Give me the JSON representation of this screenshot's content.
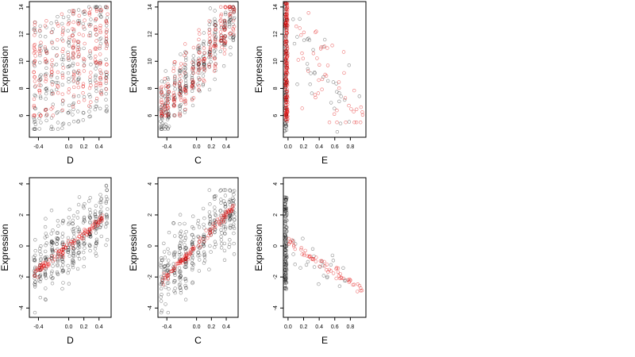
{
  "colors": {
    "black_points": "#000000",
    "red_points": "#e00000",
    "axis": "#000000"
  },
  "chart_data": [
    {
      "type": "scatter",
      "xlabel": "D",
      "ylabel": "Expression",
      "xlim": [
        -0.52,
        0.56
      ],
      "ylim": [
        4.4,
        14.4
      ],
      "x_ticks": [
        -0.4,
        0.0,
        0.2,
        0.4
      ],
      "x_tick_labels": [
        "-0.4",
        "0.0",
        "0.2",
        "0.4"
      ],
      "y_ticks": [
        6,
        8,
        10,
        12,
        14
      ],
      "y_tick_labels": [
        "6",
        "8",
        "10",
        "12",
        "14"
      ],
      "series": [
        {
          "color": "black",
          "pattern": "cloud",
          "x_groups": [
            -0.45,
            -0.38,
            -0.3,
            -0.22,
            -0.15,
            -0.08,
            0.0,
            0.06,
            0.13,
            0.2,
            0.28,
            0.36,
            0.42,
            0.5
          ],
          "y_range": [
            5,
            14
          ],
          "trend": [
            0.45,
            1.1
          ],
          "n": 260
        },
        {
          "color": "red",
          "pattern": "cloud",
          "x_groups": [
            -0.45,
            -0.38,
            -0.3,
            -0.22,
            -0.15,
            -0.08,
            0.0,
            0.06,
            0.13,
            0.2,
            0.28,
            0.36,
            0.42,
            0.5
          ],
          "y_range": [
            6,
            14
          ],
          "trend": [
            0.4,
            1.2
          ],
          "n": 220
        }
      ]
    },
    {
      "type": "scatter",
      "xlabel": "C",
      "ylabel": "Expression",
      "xlim": [
        -0.52,
        0.56
      ],
      "ylim": [
        4.4,
        14.4
      ],
      "x_ticks": [
        -0.4,
        0.0,
        0.2,
        0.4
      ],
      "x_tick_labels": [
        "-0.4",
        "0.0",
        "0.2",
        "0.4"
      ],
      "y_ticks": [
        6,
        8,
        10,
        12,
        14
      ],
      "y_tick_labels": [
        "6",
        "8",
        "10",
        "12",
        "14"
      ],
      "series": [
        {
          "color": "black",
          "pattern": "columns",
          "x_groups": [
            -0.47,
            -0.42,
            -0.38,
            -0.3,
            -0.22,
            -0.15,
            -0.05,
            0.03,
            0.1,
            0.18,
            0.25,
            0.33,
            0.38,
            0.45,
            0.5
          ],
          "y_range": [
            5,
            14
          ],
          "trend": [
            5.8,
            13.5
          ],
          "n": 300
        },
        {
          "color": "red",
          "pattern": "columns",
          "x_groups": [
            -0.47,
            -0.42,
            -0.38,
            -0.3,
            -0.22,
            -0.15,
            -0.05,
            0.03,
            0.1,
            0.18,
            0.25,
            0.33,
            0.38,
            0.45,
            0.5
          ],
          "y_range": [
            6,
            14
          ],
          "trend": [
            6.2,
            13.6
          ],
          "n": 220
        }
      ]
    },
    {
      "type": "scatter",
      "xlabel": "E",
      "ylabel": "Expression",
      "xlim": [
        -0.06,
        1.0
      ],
      "ylim": [
        4.4,
        14.4
      ],
      "x_ticks": [
        0.0,
        0.2,
        0.4,
        0.6,
        0.8
      ],
      "x_tick_labels": [
        "0.0",
        "0.2",
        "0.4",
        "0.6",
        "0.8"
      ],
      "y_ticks": [
        6,
        8,
        10,
        12,
        14
      ],
      "y_tick_labels": [
        "6",
        "8",
        "10",
        "12",
        "14"
      ],
      "series": [
        {
          "color": "black",
          "pattern": "near-zero",
          "x_groups": [
            -0.03
          ],
          "y_range": [
            4.8,
            14.3
          ],
          "trend": [
            9.5,
            9.5
          ],
          "n": 110,
          "scattered_x_range": [
            0.05,
            0.95
          ],
          "scattered_n": 35
        },
        {
          "color": "red",
          "pattern": "near-zero",
          "x_groups": [
            -0.02
          ],
          "y_range": [
            5.5,
            14.3
          ],
          "trend": [
            9.8,
            9.8
          ],
          "n": 180,
          "scattered_x_range": [
            0.1,
            0.97
          ],
          "scattered_n": 50
        }
      ]
    },
    {
      "type": "scatter",
      "xlabel": "D",
      "ylabel": "Expression",
      "xlim": [
        -0.52,
        0.56
      ],
      "ylim": [
        -4.6,
        4.4
      ],
      "x_ticks": [
        -0.4,
        0.0,
        0.2,
        0.4
      ],
      "x_tick_labels": [
        "-0.4",
        "0.0",
        "0.2",
        "0.4"
      ],
      "y_ticks": [
        -4,
        -2,
        0,
        2,
        4
      ],
      "y_tick_labels": [
        "-4",
        "-2",
        "0",
        "2",
        "4"
      ],
      "series": [
        {
          "color": "black",
          "pattern": "columns",
          "x_groups": [
            -0.45,
            -0.38,
            -0.3,
            -0.22,
            -0.15,
            -0.08,
            0.0,
            0.06,
            0.13,
            0.2,
            0.28,
            0.36,
            0.42,
            0.5
          ],
          "y_range": [
            -4.3,
            3.9
          ],
          "trend": [
            -1.9,
            2.3
          ],
          "n": 330
        },
        {
          "color": "red",
          "pattern": "line",
          "x_range": [
            -0.46,
            0.46
          ],
          "trend": [
            -1.8,
            1.8
          ],
          "n": 120
        }
      ]
    },
    {
      "type": "scatter",
      "xlabel": "C",
      "ylabel": "Expression",
      "xlim": [
        -0.52,
        0.56
      ],
      "ylim": [
        -4.6,
        4.4
      ],
      "x_ticks": [
        -0.4,
        0.0,
        0.2,
        0.4
      ],
      "x_tick_labels": [
        "-0.4",
        "0.0",
        "0.2",
        "0.4"
      ],
      "y_ticks": [
        -4,
        -2,
        0,
        2,
        4
      ],
      "y_tick_labels": [
        "-4",
        "-2",
        "0",
        "2",
        "4"
      ],
      "series": [
        {
          "color": "black",
          "pattern": "columns",
          "x_groups": [
            -0.47,
            -0.43,
            -0.38,
            -0.3,
            -0.22,
            -0.15,
            -0.05,
            0.03,
            0.1,
            0.18,
            0.25,
            0.33,
            0.38,
            0.45,
            0.5
          ],
          "y_range": [
            -4.3,
            3.6
          ],
          "trend": [
            -2.3,
            2.5
          ],
          "n": 330
        },
        {
          "color": "red",
          "pattern": "line",
          "x_range": [
            -0.48,
            0.5
          ],
          "trend": [
            -2.4,
            2.5
          ],
          "n": 120
        }
      ]
    },
    {
      "type": "scatter",
      "xlabel": "E",
      "ylabel": "Expression",
      "xlim": [
        -0.06,
        1.0
      ],
      "ylim": [
        -4.6,
        4.4
      ],
      "x_ticks": [
        0.0,
        0.2,
        0.4,
        0.6,
        0.8
      ],
      "x_tick_labels": [
        "0.0",
        "0.2",
        "0.4",
        "0.6",
        "0.8"
      ],
      "y_ticks": [
        -4,
        -2,
        0,
        2,
        4
      ],
      "y_tick_labels": [
        "-4",
        "-2",
        "0",
        "2",
        "4"
      ],
      "series": [
        {
          "color": "black",
          "pattern": "near-zero",
          "x_groups": [
            -0.03
          ],
          "y_range": [
            -2.8,
            3.2
          ],
          "trend": [
            0,
            0
          ],
          "n": 140,
          "scattered_x_range": [
            0.05,
            0.75
          ],
          "scattered_n": 25
        },
        {
          "color": "red",
          "pattern": "line",
          "x_range": [
            0.0,
            0.97
          ],
          "trend": [
            0.3,
            -2.9
          ],
          "n": 60
        }
      ]
    }
  ]
}
